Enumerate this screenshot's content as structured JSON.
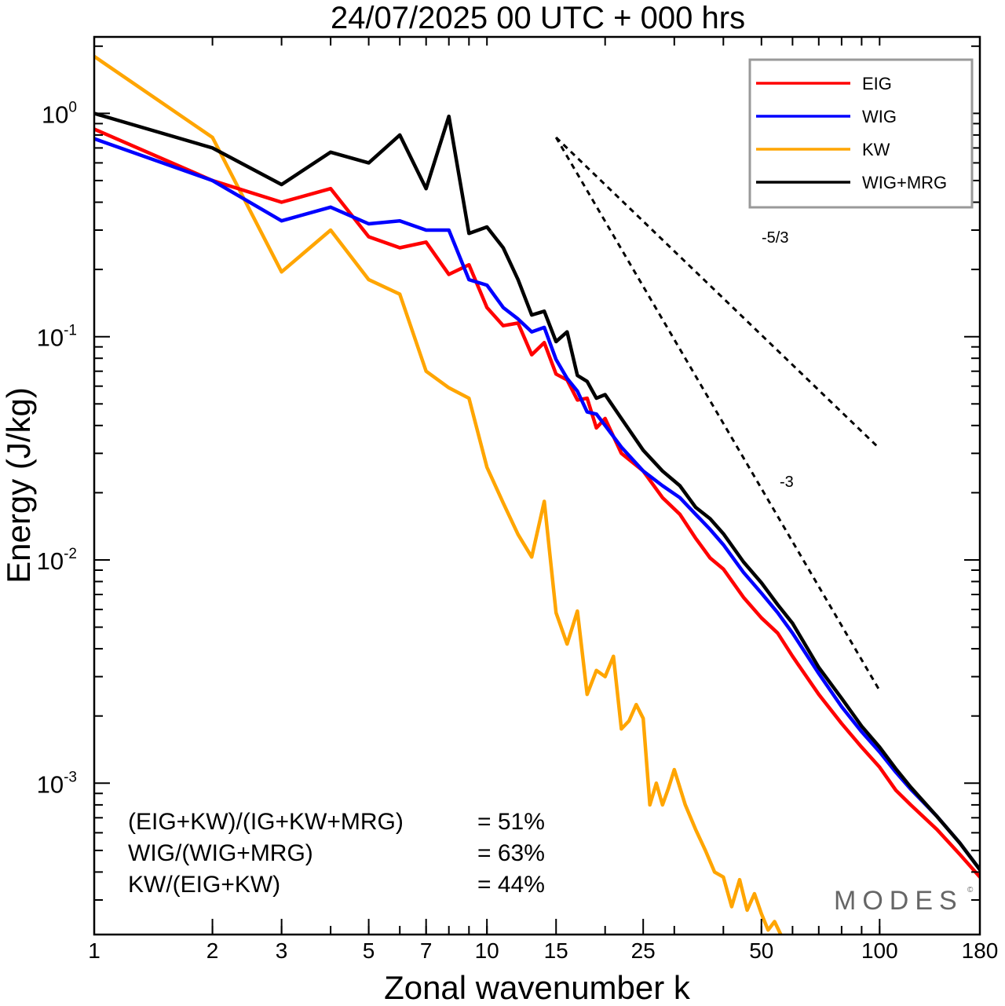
{
  "chart_data": {
    "type": "line",
    "title": "24/07/2025  00 UTC  + 000 hrs",
    "xlabel": "Zonal wavenumber k",
    "ylabel": "Energy (J/kg)",
    "x_scale": "log",
    "y_scale": "log",
    "xlim": [
      1,
      180
    ],
    "ylim": [
      0.00021,
      2.2
    ],
    "x_ticks": [
      1,
      2,
      3,
      5,
      7,
      10,
      15,
      25,
      50,
      100,
      180
    ],
    "x_tick_labels": [
      "1",
      "2",
      "3",
      "5",
      "7",
      "10",
      "15",
      "25",
      "50",
      "100",
      "180"
    ],
    "y_ticks": [
      {
        "value": 1,
        "base": "10",
        "exp": "0"
      },
      {
        "value": 0.1,
        "base": "10",
        "exp": "-1"
      },
      {
        "value": 0.01,
        "base": "10",
        "exp": "-2"
      },
      {
        "value": 0.001,
        "base": "10",
        "exp": "-3"
      }
    ],
    "grid": false,
    "legend_position": "top-right",
    "legend": [
      "EIG",
      "WIG",
      "KW",
      "WIG+MRG"
    ],
    "series": [
      {
        "name": "EIG",
        "color": "#ff0000",
        "x": [
          1,
          2,
          3,
          4,
          5,
          6,
          7,
          8,
          9,
          10,
          11,
          12,
          13,
          14,
          15,
          16,
          17,
          18,
          19,
          20,
          22,
          25,
          28,
          31,
          34,
          37,
          40,
          45,
          50,
          55,
          60,
          70,
          80,
          90,
          100,
          110,
          120,
          140,
          160,
          180
        ],
        "y": [
          0.85,
          0.5,
          0.4,
          0.46,
          0.28,
          0.25,
          0.265,
          0.19,
          0.21,
          0.135,
          0.112,
          0.115,
          0.083,
          0.094,
          0.068,
          0.064,
          0.052,
          0.053,
          0.039,
          0.043,
          0.03,
          0.025,
          0.019,
          0.016,
          0.0125,
          0.0102,
          0.0091,
          0.0068,
          0.0055,
          0.0047,
          0.0037,
          0.0025,
          0.00185,
          0.00145,
          0.00118,
          0.00093,
          0.0008,
          0.00062,
          0.00048,
          0.00038
        ]
      },
      {
        "name": "WIG",
        "color": "#0000ff",
        "x": [
          1,
          2,
          3,
          4,
          5,
          6,
          7,
          8,
          9,
          10,
          11,
          12,
          13,
          14,
          15,
          16,
          17,
          18,
          19,
          20,
          22,
          25,
          28,
          31,
          34,
          37,
          40,
          45,
          50,
          55,
          60,
          70,
          80,
          90,
          100,
          110,
          120,
          140,
          160,
          180
        ],
        "y": [
          0.77,
          0.5,
          0.33,
          0.38,
          0.32,
          0.33,
          0.3,
          0.3,
          0.18,
          0.17,
          0.135,
          0.12,
          0.105,
          0.11,
          0.079,
          0.065,
          0.057,
          0.046,
          0.045,
          0.04,
          0.032,
          0.025,
          0.0215,
          0.019,
          0.016,
          0.0137,
          0.0117,
          0.0088,
          0.0071,
          0.0058,
          0.0047,
          0.0031,
          0.0022,
          0.0017,
          0.00138,
          0.00112,
          0.00094,
          0.00071,
          0.00054,
          0.00041
        ]
      },
      {
        "name": "KW",
        "color": "#ffa500",
        "x": [
          1,
          2,
          3,
          4,
          5,
          6,
          7,
          8,
          9,
          10,
          11,
          12,
          13,
          14,
          15,
          16,
          17,
          18,
          19,
          20,
          21,
          22,
          23,
          24,
          25,
          26,
          27,
          28,
          29,
          30,
          32,
          34,
          36,
          38,
          40,
          42,
          44,
          46,
          48,
          50,
          52,
          54,
          56
        ],
        "y": [
          1.8,
          0.78,
          0.195,
          0.3,
          0.18,
          0.155,
          0.07,
          0.059,
          0.053,
          0.026,
          0.018,
          0.013,
          0.0103,
          0.0183,
          0.0058,
          0.0042,
          0.0059,
          0.0025,
          0.0032,
          0.003,
          0.0037,
          0.00175,
          0.0019,
          0.00225,
          0.00195,
          0.0008,
          0.001,
          0.0008,
          0.00095,
          0.00115,
          0.0008,
          0.00062,
          0.0005,
          0.0004,
          0.00038,
          0.00028,
          0.00037,
          0.00027,
          0.00032,
          0.00026,
          0.00022,
          0.00024,
          0.00021
        ]
      },
      {
        "name": "WIG+MRG",
        "color": "#000000",
        "x": [
          1,
          2,
          3,
          4,
          5,
          6,
          7,
          8,
          9,
          10,
          11,
          12,
          13,
          14,
          15,
          16,
          17,
          18,
          19,
          20,
          22,
          25,
          28,
          31,
          34,
          37,
          40,
          45,
          50,
          55,
          60,
          70,
          80,
          90,
          100,
          110,
          120,
          140,
          160,
          180
        ],
        "y": [
          1.0,
          0.7,
          0.48,
          0.67,
          0.6,
          0.8,
          0.46,
          0.97,
          0.29,
          0.31,
          0.25,
          0.18,
          0.125,
          0.13,
          0.095,
          0.105,
          0.067,
          0.063,
          0.053,
          0.055,
          0.043,
          0.031,
          0.025,
          0.0215,
          0.0172,
          0.0153,
          0.0131,
          0.0098,
          0.0079,
          0.0063,
          0.0052,
          0.0033,
          0.0024,
          0.0018,
          0.00145,
          0.00116,
          0.00096,
          0.00071,
          0.00054,
          0.00041
        ]
      }
    ],
    "reference_lines": [
      {
        "label": "-5/3",
        "slope": -1.6667,
        "x": [
          15,
          100
        ],
        "y": [
          0.78,
          0.0315
        ]
      },
      {
        "label": "-3",
        "slope": -3,
        "x": [
          15,
          100
        ],
        "y": [
          0.78,
          0.0026
        ]
      }
    ],
    "annotations": [
      {
        "label": "(EIG+KW)/(IG+KW+MRG)",
        "value": "= 51%"
      },
      {
        "label": "WIG/(WIG+MRG)",
        "value": "= 63%"
      },
      {
        "label": "KW/(EIG+KW)",
        "value": "= 44%"
      }
    ],
    "watermark": "MODES",
    "watermark_mark": "©"
  }
}
